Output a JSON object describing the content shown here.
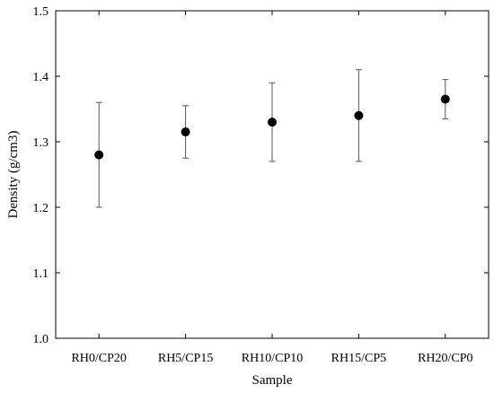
{
  "chart_data": {
    "type": "scatter",
    "title": "",
    "xlabel": "Sample",
    "ylabel": "Density (g/cm3)",
    "categories": [
      "RH0/CP20",
      "RH5/CP15",
      "RH10/CP10",
      "RH15/CP5",
      "RH20/CP0"
    ],
    "values": [
      1.28,
      1.315,
      1.33,
      1.34,
      1.365
    ],
    "error_low": [
      1.2,
      1.275,
      1.27,
      1.27,
      1.335
    ],
    "error_high": [
      1.36,
      1.355,
      1.39,
      1.41,
      1.395
    ],
    "ylim": [
      1.0,
      1.5
    ],
    "yticks": [
      "1.0",
      "1.1",
      "1.2",
      "1.3",
      "1.4",
      "1.5"
    ],
    "grid": false,
    "marker_color": "#000000",
    "errorbar_color": "#555555"
  }
}
